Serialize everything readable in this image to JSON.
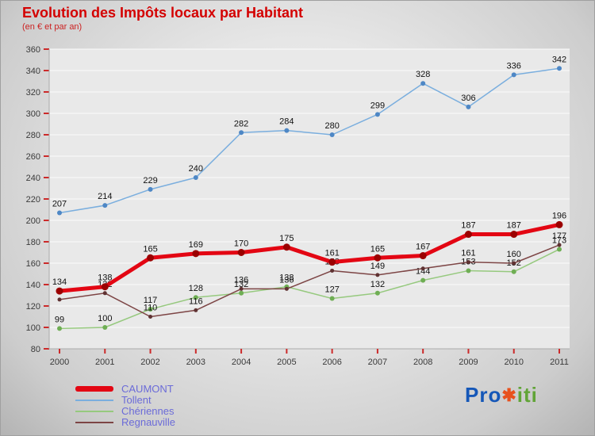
{
  "header": {
    "title": "Evolution des Impôts locaux par Habitant",
    "subtitle": "(en € et par an)"
  },
  "chart_data": {
    "type": "line",
    "x_labels": [
      "2000",
      "2001",
      "2002",
      "2003",
      "2004",
      "2005",
      "2006",
      "2007",
      "2008",
      "2009",
      "2010",
      "2011"
    ],
    "ylim": [
      80,
      360
    ],
    "yticks": [
      80,
      100,
      120,
      140,
      160,
      180,
      200,
      220,
      240,
      260,
      280,
      300,
      320,
      340,
      360
    ],
    "grid": true,
    "legend_position": "bottom-left",
    "axis_tick_color": "#cc2a2a",
    "axis_label_color": "#3a3a3a",
    "data_label_color": "#111111",
    "series": [
      {
        "name": "CAUMONT",
        "color": "#e30613",
        "marker_color": "#9b0000",
        "line_width": 5,
        "marker_radius": 4.5,
        "z": 4,
        "values": [
          134,
          138,
          165,
          169,
          170,
          175,
          161,
          165,
          167,
          187,
          187,
          196
        ],
        "labels": [
          134,
          138,
          165,
          169,
          170,
          175,
          161,
          165,
          167,
          187,
          187,
          196
        ]
      },
      {
        "name": "Tollent",
        "color": "#7aaede",
        "marker_color": "#4e87c5",
        "line_width": 1.5,
        "marker_radius": 3,
        "z": 1,
        "values": [
          207,
          214,
          229,
          240,
          282,
          284,
          280,
          299,
          328,
          306,
          336,
          342
        ],
        "labels": [
          207,
          214,
          229,
          240,
          282,
          284,
          280,
          299,
          328,
          306,
          336,
          342
        ]
      },
      {
        "name": "Chériennes",
        "color": "#96c97e",
        "marker_color": "#6fae54",
        "line_width": 1.5,
        "marker_radius": 3,
        "z": 2,
        "values": [
          99,
          100,
          117,
          128,
          132,
          138,
          127,
          132,
          144,
          153,
          152,
          173
        ],
        "labels": [
          99,
          100,
          117,
          128,
          132,
          138,
          127,
          132,
          144,
          153,
          152,
          173
        ]
      },
      {
        "name": "Regnauville",
        "color": "#7d4545",
        "marker_color": "#5f3232",
        "line_width": 1.5,
        "marker_radius": 2.5,
        "z": 3,
        "values": [
          126,
          132,
          110,
          116,
          136,
          136,
          153,
          149,
          155,
          161,
          160,
          177
        ],
        "labels": [
          null,
          132,
          110,
          116,
          136,
          136,
          153,
          149,
          null,
          161,
          160,
          177
        ]
      }
    ]
  },
  "legend": {
    "text_color": "#6b6bd8",
    "items": [
      {
        "name": "CAUMONT",
        "color": "#e30613",
        "thick": true
      },
      {
        "name": "Tollent",
        "color": "#7aaede",
        "thick": false
      },
      {
        "name": "Chériennes",
        "color": "#96c97e",
        "thick": false
      },
      {
        "name": "Regnauville",
        "color": "#7d4545",
        "thick": false
      }
    ]
  },
  "logo": {
    "part1": "Pro",
    "star": "✱",
    "part2": "iti",
    "color1": "#1557b8",
    "star_color": "#e8511d",
    "color2": "#61a437"
  }
}
